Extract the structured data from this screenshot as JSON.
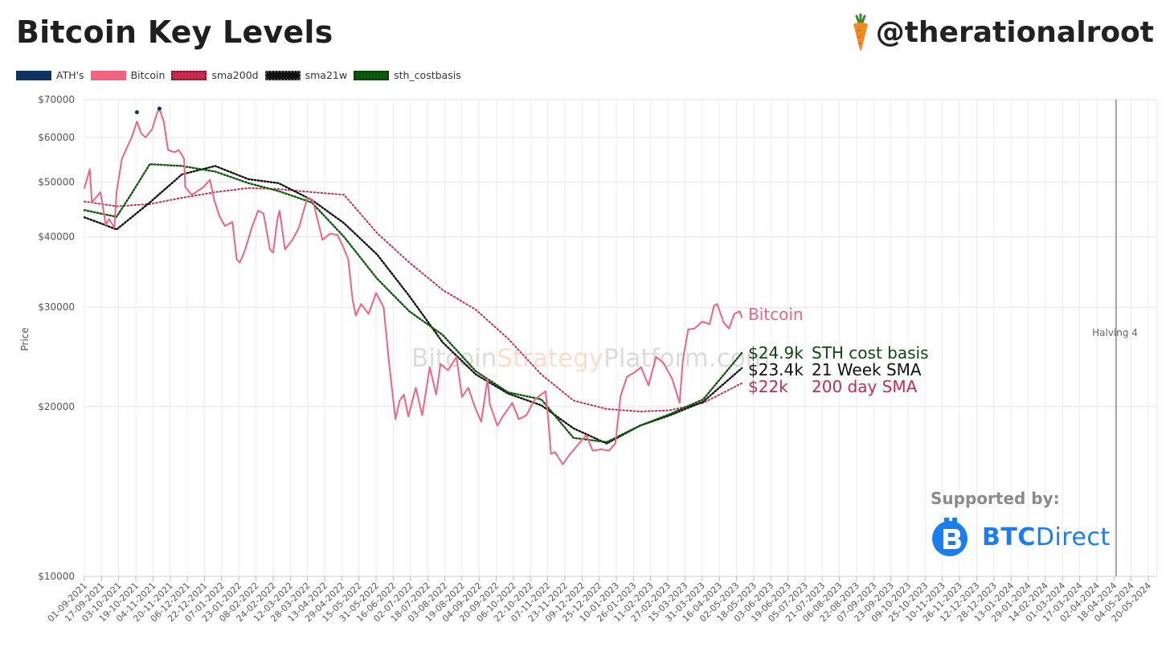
{
  "header": {
    "title": "Bitcoin Key Levels",
    "handle": "@therationalroot"
  },
  "legend": [
    {
      "label": "ATH's",
      "color": "#0d3461",
      "style": "solid"
    },
    {
      "label": "Bitcoin",
      "color": "#f2637f",
      "style": "solid"
    },
    {
      "label": "sma200d",
      "color": "#c8294d",
      "style": "dotted"
    },
    {
      "label": "sma21w",
      "color": "#111111",
      "style": "dotted"
    },
    {
      "label": "sth_costbasis",
      "color": "#0b5a0b",
      "style": "dotted"
    }
  ],
  "watermark": {
    "part1": "Bitcoin",
    "part2": "Strategy",
    "part3": "Platform.com"
  },
  "sponsor": {
    "supported_by": "Supported by:",
    "name_bold": "BTC",
    "name_regular": "Direct"
  },
  "colors": {
    "bitcoin": "#f2637f",
    "sma200d": "#c8294d",
    "sma21w": "#111111",
    "sth": "#0b5a0b",
    "ath": "#0d3461",
    "grid": "#e4e4e4",
    "halving_line": "#888888"
  },
  "annotations": [
    {
      "value": "Bitcoin",
      "label": "",
      "color": "#f2637f"
    },
    {
      "value": "$24.9k",
      "label": "STH cost basis",
      "color": "#0b4a0b"
    },
    {
      "value": "$23.4k",
      "label": "21 Week SMA",
      "color": "#111111"
    },
    {
      "value": "$22k",
      "label": "200 day SMA",
      "color": "#c8294d"
    }
  ],
  "chart_data": {
    "type": "line",
    "title": "Bitcoin Key Levels",
    "xlabel": "",
    "ylabel": "Price",
    "y_scale": "log",
    "ylim": [
      10000,
      70000
    ],
    "y_ticks": [
      10000,
      20000,
      30000,
      40000,
      50000,
      60000,
      70000
    ],
    "y_tick_labels": [
      "$10000",
      "$20000",
      "$30000",
      "$40000",
      "$50000",
      "$60000",
      "$70000"
    ],
    "x_tick_labels": [
      "01-09-2021",
      "17-09-2021",
      "03-10-2021",
      "19-10-2021",
      "04-11-2021",
      "20-11-2021",
      "06-12-2021",
      "22-12-2021",
      "07-01-2022",
      "23-01-2022",
      "08-02-2022",
      "24-02-2022",
      "12-03-2022",
      "28-03-2022",
      "13-04-2022",
      "29-04-2022",
      "15-05-2022",
      "31-05-2022",
      "16-06-2022",
      "02-07-2022",
      "18-07-2022",
      "03-08-2022",
      "19-08-2022",
      "04-09-2022",
      "20-09-2022",
      "06-10-2022",
      "22-10-2022",
      "07-11-2022",
      "23-11-2022",
      "09-12-2022",
      "25-12-2022",
      "10-01-2023",
      "26-01-2023",
      "11-02-2023",
      "27-02-2023",
      "15-03-2023",
      "31-03-2023",
      "16-04-2023",
      "02-05-2023",
      "18-05-2023",
      "03-06-2023",
      "19-06-2023",
      "05-07-2023",
      "21-07-2023",
      "06-08-2023",
      "22-08-2023",
      "07-09-2023",
      "23-09-2023",
      "09-10-2023",
      "25-10-2023",
      "10-11-2023",
      "26-11-2023",
      "12-12-2023",
      "28-12-2023",
      "13-01-2024",
      "29-01-2024",
      "14-02-2024",
      "01-03-2024",
      "17-03-2024",
      "02-04-2024",
      "18-04-2024",
      "04-05-2024",
      "20-05-2024"
    ],
    "grid": true,
    "legend_position": "top-left",
    "vertical_markers": [
      {
        "x": "20-04-2024",
        "label": "Halving 4"
      }
    ],
    "series": [
      {
        "name": "Bitcoin",
        "style": "solid",
        "points": [
          [
            "01-09-2021",
            48800
          ],
          [
            "06-09-2021",
            52700
          ],
          [
            "08-09-2021",
            46000
          ],
          [
            "16-09-2021",
            48000
          ],
          [
            "21-09-2021",
            42000
          ],
          [
            "24-09-2021",
            43000
          ],
          [
            "29-09-2021",
            41500
          ],
          [
            "01-10-2021",
            48000
          ],
          [
            "06-10-2021",
            55000
          ],
          [
            "15-10-2021",
            60000
          ],
          [
            "20-10-2021",
            64000
          ],
          [
            "24-10-2021",
            61000
          ],
          [
            "28-10-2021",
            60000
          ],
          [
            "31-10-2021",
            61000
          ],
          [
            "03-11-2021",
            62000
          ],
          [
            "08-11-2021",
            66500
          ],
          [
            "10-11-2021",
            67500
          ],
          [
            "14-11-2021",
            64000
          ],
          [
            "18-11-2021",
            57000
          ],
          [
            "24-11-2021",
            56500
          ],
          [
            "28-11-2021",
            57000
          ],
          [
            "03-12-2021",
            55000
          ],
          [
            "04-12-2021",
            49000
          ],
          [
            "10-12-2021",
            47500
          ],
          [
            "14-12-2021",
            48000
          ],
          [
            "21-12-2021",
            49000
          ],
          [
            "27-12-2021",
            50500
          ],
          [
            "31-12-2021",
            46500
          ],
          [
            "05-01-2022",
            43500
          ],
          [
            "10-01-2022",
            41800
          ],
          [
            "17-01-2022",
            42500
          ],
          [
            "21-01-2022",
            36500
          ],
          [
            "24-01-2022",
            36000
          ],
          [
            "29-01-2022",
            38000
          ],
          [
            "04-02-2022",
            41500
          ],
          [
            "10-02-2022",
            44500
          ],
          [
            "15-02-2022",
            44000
          ],
          [
            "21-02-2022",
            38000
          ],
          [
            "24-02-2022",
            37500
          ],
          [
            "28-02-2022",
            43000
          ],
          [
            "02-03-2022",
            44500
          ],
          [
            "07-03-2022",
            38000
          ],
          [
            "14-03-2022",
            39500
          ],
          [
            "20-03-2022",
            41500
          ],
          [
            "28-03-2022",
            47000
          ],
          [
            "02-04-2022",
            46500
          ],
          [
            "06-04-2022",
            43200
          ],
          [
            "11-04-2022",
            39500
          ],
          [
            "18-04-2022",
            40500
          ],
          [
            "25-04-2022",
            40300
          ],
          [
            "30-04-2022",
            38500
          ],
          [
            "05-05-2022",
            36500
          ],
          [
            "09-05-2022",
            31000
          ],
          [
            "12-05-2022",
            29000
          ],
          [
            "17-05-2022",
            30400
          ],
          [
            "24-05-2022",
            29200
          ],
          [
            "31-05-2022",
            31800
          ],
          [
            "07-06-2022",
            30000
          ],
          [
            "12-06-2022",
            24000
          ],
          [
            "14-06-2022",
            22200
          ],
          [
            "18-06-2022",
            19000
          ],
          [
            "22-06-2022",
            20500
          ],
          [
            "26-06-2022",
            21000
          ],
          [
            "30-06-2022",
            19200
          ],
          [
            "07-07-2022",
            21600
          ],
          [
            "13-07-2022",
            19300
          ],
          [
            "20-07-2022",
            23500
          ],
          [
            "26-07-2022",
            21000
          ],
          [
            "30-07-2022",
            23800
          ],
          [
            "06-08-2022",
            23200
          ],
          [
            "14-08-2022",
            24500
          ],
          [
            "19-08-2022",
            20800
          ],
          [
            "25-08-2022",
            21600
          ],
          [
            "31-08-2022",
            20000
          ],
          [
            "06-09-2022",
            18800
          ],
          [
            "12-09-2022",
            22400
          ],
          [
            "14-09-2022",
            20200
          ],
          [
            "21-09-2022",
            18500
          ],
          [
            "26-09-2022",
            19200
          ],
          [
            "05-10-2022",
            20300
          ],
          [
            "11-10-2022",
            19000
          ],
          [
            "18-10-2022",
            19300
          ],
          [
            "26-10-2022",
            20600
          ],
          [
            "05-11-2022",
            21300
          ],
          [
            "08-11-2022",
            18500
          ],
          [
            "10-11-2022",
            16500
          ],
          [
            "14-11-2022",
            16600
          ],
          [
            "21-11-2022",
            15800
          ],
          [
            "27-11-2022",
            16400
          ],
          [
            "05-12-2022",
            17100
          ],
          [
            "13-12-2022",
            17800
          ],
          [
            "19-12-2022",
            16700
          ],
          [
            "27-12-2022",
            16800
          ],
          [
            "03-01-2023",
            16700
          ],
          [
            "09-01-2023",
            17200
          ],
          [
            "14-01-2023",
            20900
          ],
          [
            "20-01-2023",
            22600
          ],
          [
            "27-01-2023",
            23000
          ],
          [
            "02-02-2023",
            23500
          ],
          [
            "09-02-2023",
            21800
          ],
          [
            "16-02-2023",
            24500
          ],
          [
            "23-02-2023",
            23900
          ],
          [
            "03-03-2023",
            22400
          ],
          [
            "10-03-2023",
            20300
          ],
          [
            "13-03-2023",
            24200
          ],
          [
            "18-03-2023",
            27400
          ],
          [
            "24-03-2023",
            27500
          ],
          [
            "31-03-2023",
            28300
          ],
          [
            "07-04-2023",
            28000
          ],
          [
            "11-04-2023",
            30200
          ],
          [
            "14-04-2023",
            30400
          ],
          [
            "20-04-2023",
            28200
          ],
          [
            "25-04-2023",
            27500
          ],
          [
            "30-04-2023",
            29200
          ],
          [
            "05-05-2023",
            29500
          ],
          [
            "07-05-2023",
            28800
          ]
        ]
      },
      {
        "name": "sma200d",
        "style": "dotted",
        "points": [
          [
            "01-09-2021",
            46200
          ],
          [
            "01-10-2021",
            45300
          ],
          [
            "01-11-2021",
            45700
          ],
          [
            "01-12-2021",
            46900
          ],
          [
            "01-01-2022",
            48000
          ],
          [
            "01-02-2022",
            48800
          ],
          [
            "01-03-2022",
            48600
          ],
          [
            "01-04-2022",
            48000
          ],
          [
            "01-05-2022",
            47500
          ],
          [
            "01-06-2022",
            40600
          ],
          [
            "01-07-2022",
            36000
          ],
          [
            "01-08-2022",
            32200
          ],
          [
            "01-09-2022",
            29700
          ],
          [
            "01-10-2022",
            26400
          ],
          [
            "01-11-2022",
            22800
          ],
          [
            "01-12-2022",
            20500
          ],
          [
            "01-01-2023",
            19800
          ],
          [
            "01-02-2023",
            19600
          ],
          [
            "01-03-2023",
            19700
          ],
          [
            "01-04-2023",
            20300
          ],
          [
            "07-05-2023",
            22000
          ]
        ]
      },
      {
        "name": "sma21w",
        "style": "dotted",
        "points": [
          [
            "01-09-2021",
            43300
          ],
          [
            "20-09-2021",
            42000
          ],
          [
            "01-10-2021",
            41200
          ],
          [
            "01-11-2021",
            46000
          ],
          [
            "01-12-2021",
            51600
          ],
          [
            "01-01-2022",
            53400
          ],
          [
            "01-02-2022",
            50600
          ],
          [
            "01-03-2022",
            49800
          ],
          [
            "01-04-2022",
            46500
          ],
          [
            "01-05-2022",
            42300
          ],
          [
            "01-06-2022",
            37200
          ],
          [
            "01-07-2022",
            31400
          ],
          [
            "01-08-2022",
            26000
          ],
          [
            "01-09-2022",
            22800
          ],
          [
            "01-10-2022",
            21100
          ],
          [
            "01-11-2022",
            20100
          ],
          [
            "01-12-2022",
            18300
          ],
          [
            "01-01-2023",
            17200
          ],
          [
            "01-02-2023",
            18500
          ],
          [
            "01-03-2023",
            19300
          ],
          [
            "01-04-2023",
            20400
          ],
          [
            "07-05-2023",
            23400
          ]
        ]
      },
      {
        "name": "sth_costbasis",
        "style": "dotted",
        "points": [
          [
            "01-09-2021",
            44600
          ],
          [
            "01-10-2021",
            43400
          ],
          [
            "15-10-2021",
            47700
          ],
          [
            "01-11-2021",
            53800
          ],
          [
            "01-12-2021",
            53400
          ],
          [
            "01-01-2022",
            52200
          ],
          [
            "01-02-2022",
            49800
          ],
          [
            "01-03-2022",
            48200
          ],
          [
            "01-04-2022",
            46000
          ],
          [
            "01-05-2022",
            40000
          ],
          [
            "01-06-2022",
            33700
          ],
          [
            "01-07-2022",
            29500
          ],
          [
            "01-08-2022",
            26800
          ],
          [
            "01-09-2022",
            23100
          ],
          [
            "01-10-2022",
            21200
          ],
          [
            "01-11-2022",
            20600
          ],
          [
            "01-12-2022",
            17600
          ],
          [
            "01-01-2023",
            17300
          ],
          [
            "01-02-2023",
            18500
          ],
          [
            "01-03-2023",
            19400
          ],
          [
            "01-04-2023",
            20600
          ],
          [
            "07-05-2023",
            24900
          ]
        ]
      }
    ],
    "ath_points": [
      [
        "10-11-2021",
        67500
      ],
      [
        "20-10-2021",
        66500
      ]
    ]
  }
}
